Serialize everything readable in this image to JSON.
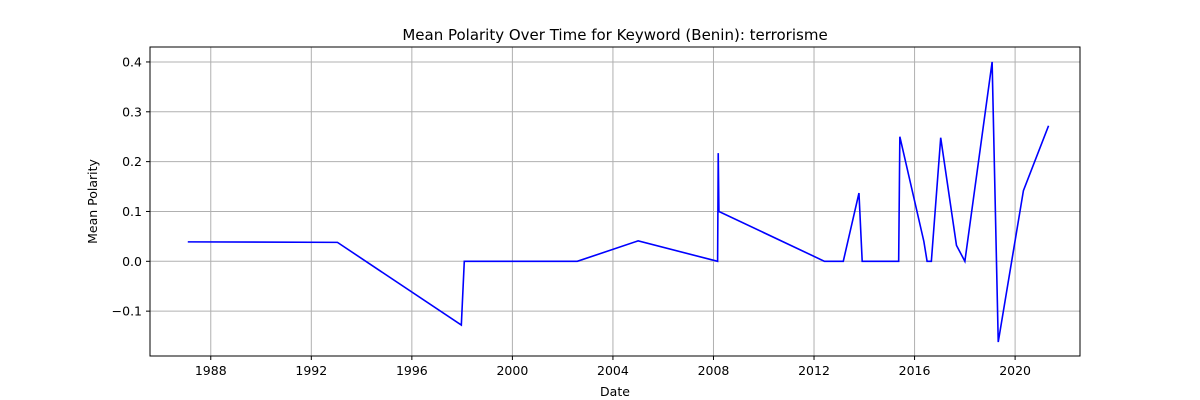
{
  "chart_data": {
    "type": "line",
    "title": "Mean Polarity Over Time for Keyword (Benin): terrorisme",
    "xlabel": "Date",
    "ylabel": "Mean Polarity",
    "x_is_date": true,
    "xlim": [
      "1985-08-01",
      "2022-08-01"
    ],
    "ylim": [
      -0.19,
      0.43
    ],
    "x_ticks": [
      {
        "value": "1988-01-01",
        "label": "1988"
      },
      {
        "value": "1992-01-01",
        "label": "1992"
      },
      {
        "value": "1996-01-01",
        "label": "1996"
      },
      {
        "value": "2000-01-01",
        "label": "2000"
      },
      {
        "value": "2004-01-01",
        "label": "2004"
      },
      {
        "value": "2008-01-01",
        "label": "2008"
      },
      {
        "value": "2012-01-01",
        "label": "2012"
      },
      {
        "value": "2016-01-01",
        "label": "2016"
      },
      {
        "value": "2020-01-01",
        "label": "2020"
      }
    ],
    "y_ticks": [
      {
        "value": -0.1,
        "label": "−0.1"
      },
      {
        "value": 0.0,
        "label": "0.0"
      },
      {
        "value": 0.1,
        "label": "0.1"
      },
      {
        "value": 0.2,
        "label": "0.2"
      },
      {
        "value": 0.3,
        "label": "0.3"
      },
      {
        "value": 0.4,
        "label": "0.4"
      }
    ],
    "grid": true,
    "line_color": "#0000ff",
    "series": [
      {
        "x": [
          "1987-02-01",
          "1993-01-15",
          "1997-12-20",
          "1998-02-01",
          "2002-08-01",
          "2005-01-01",
          "2008-03-01",
          "2008-03-10",
          "2008-03-20",
          "2012-06-01",
          "2013-03-01",
          "2013-10-15",
          "2013-12-01",
          "2015-05-15",
          "2015-06-01",
          "2016-05-15",
          "2016-07-01",
          "2016-09-01",
          "2017-01-15",
          "2017-09-01",
          "2018-01-01",
          "2019-02-01",
          "2019-05-01",
          "2020-05-01",
          "2021-05-01"
        ],
        "y": [
          0.039,
          0.038,
          -0.128,
          0.0,
          0.0,
          0.041,
          0.0,
          0.217,
          0.1,
          0.0,
          0.0,
          0.137,
          0.0,
          0.0,
          0.25,
          0.04,
          0.0,
          0.0,
          0.248,
          0.032,
          0.0,
          0.4,
          -0.162,
          0.142,
          0.272
        ]
      }
    ]
  }
}
